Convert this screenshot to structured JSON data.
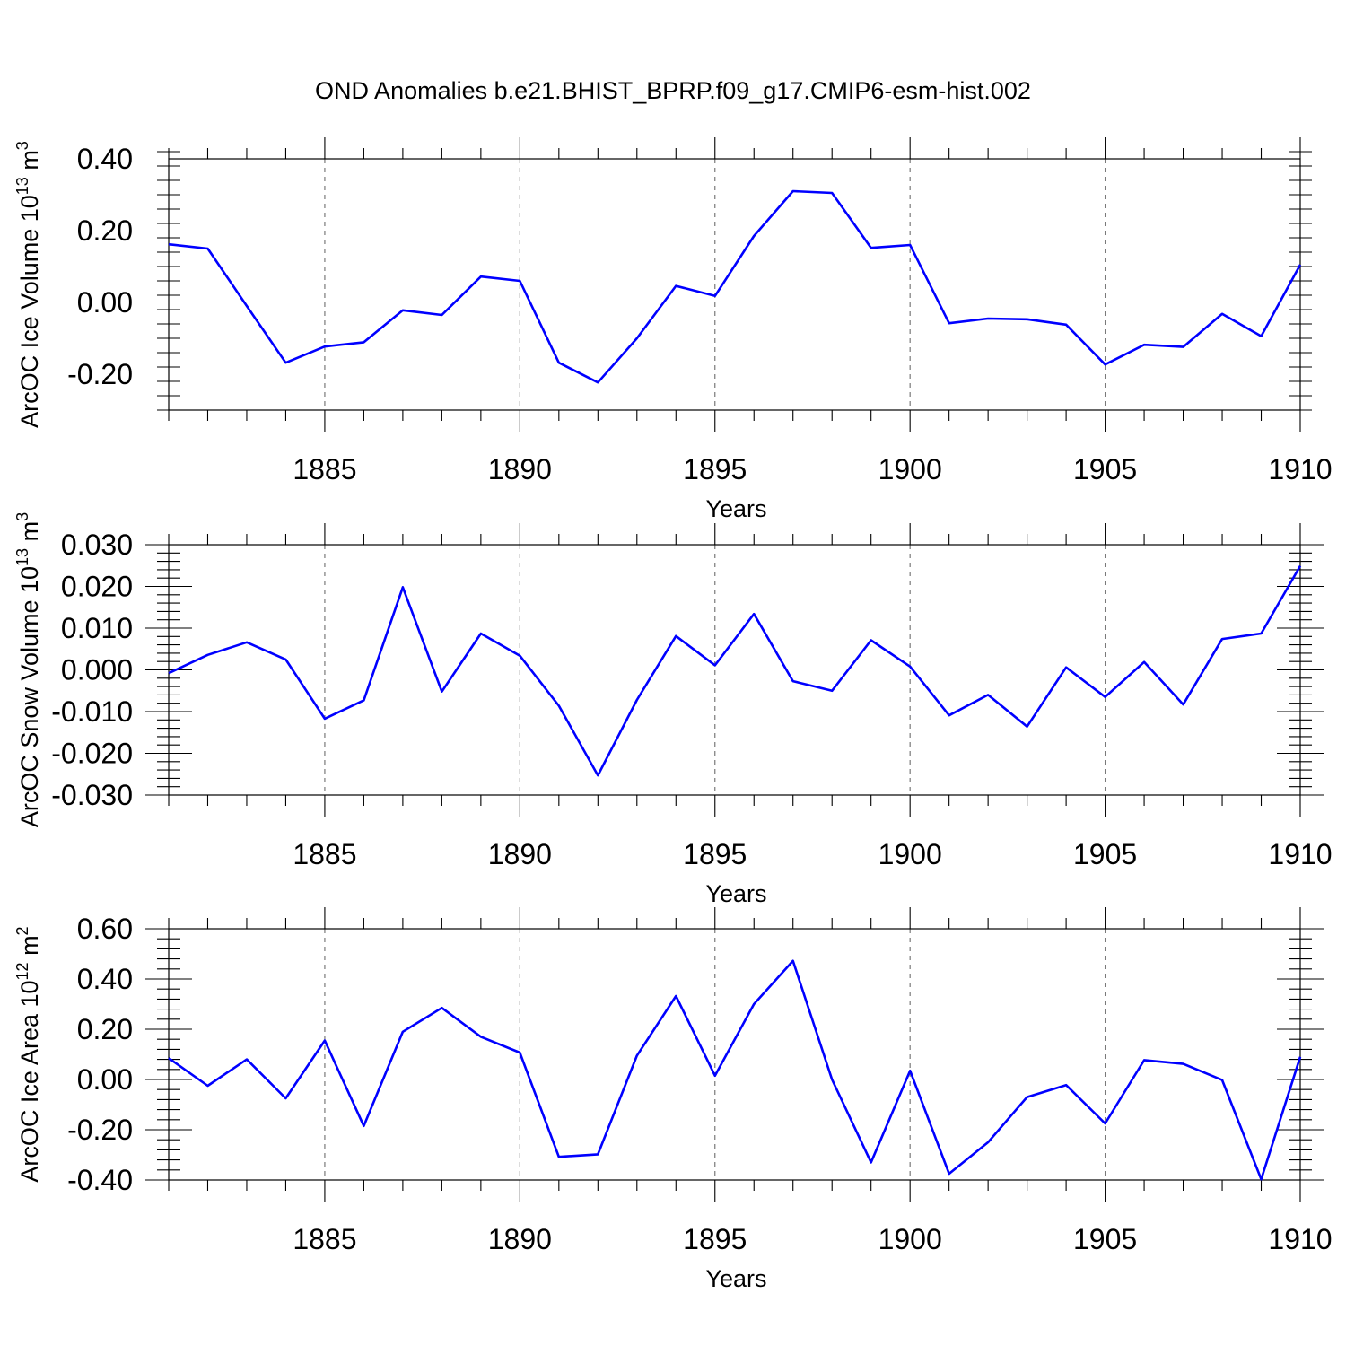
{
  "title": "OND Anomalies b.e21.BHIST_BPRP.f09_g17.CMIP6-esm-hist.002",
  "colors": {
    "line": "#0000ff",
    "axes": "#000000",
    "grid": "#7a7a7a"
  },
  "chart_data": [
    {
      "type": "line",
      "name": "ice-volume",
      "xlabel": "Years",
      "ylabel_main": "ArcOC Ice Volume 10",
      "ylabel_exp": "13",
      "ylabel_unit": " m",
      "ylabel_unit_exp": "3",
      "xlim": [
        1881,
        1910
      ],
      "ylim": [
        -0.3,
        0.4
      ],
      "xticks": [
        1885,
        1890,
        1895,
        1900,
        1905,
        1910
      ],
      "xtick_labels": [
        "1885",
        "1890",
        "1895",
        "1900",
        "1905",
        "1910"
      ],
      "yticks": [
        -0.2,
        0.0,
        0.2,
        0.4
      ],
      "ytick_labels": [
        "-0.20",
        "0.00",
        "0.20",
        "0.40"
      ],
      "grid_x": [
        1885,
        1890,
        1895,
        1900,
        1905
      ],
      "x": [
        1881,
        1882,
        1883,
        1884,
        1885,
        1886,
        1887,
        1888,
        1889,
        1890,
        1891,
        1892,
        1893,
        1894,
        1895,
        1896,
        1897,
        1898,
        1899,
        1900,
        1901,
        1902,
        1903,
        1904,
        1905,
        1906,
        1907,
        1908,
        1909,
        1910
      ],
      "values": [
        0.162,
        0.15,
        -0.01,
        -0.168,
        -0.123,
        -0.111,
        -0.022,
        -0.035,
        0.072,
        0.06,
        -0.168,
        -0.223,
        -0.1,
        0.046,
        0.018,
        0.185,
        0.31,
        0.305,
        0.152,
        0.16,
        -0.058,
        -0.045,
        -0.047,
        -0.062,
        -0.173,
        -0.118,
        -0.124,
        -0.032,
        -0.094,
        0.105
      ]
    },
    {
      "type": "line",
      "name": "snow-volume",
      "xlabel": "Years",
      "ylabel_main": "ArcOC Snow Volume 10",
      "ylabel_exp": "13",
      "ylabel_unit": " m",
      "ylabel_unit_exp": "3",
      "xlim": [
        1881,
        1910
      ],
      "ylim": [
        -0.03,
        0.03
      ],
      "xticks": [
        1885,
        1890,
        1895,
        1900,
        1905,
        1910
      ],
      "xtick_labels": [
        "1885",
        "1890",
        "1895",
        "1900",
        "1905",
        "1910"
      ],
      "yticks": [
        -0.03,
        -0.02,
        -0.01,
        0.0,
        0.01,
        0.02,
        0.03
      ],
      "ytick_labels": [
        "-0.030",
        "-0.020",
        "-0.010",
        "0.000",
        "0.010",
        "0.020",
        "0.030"
      ],
      "grid_x": [
        1885,
        1890,
        1895,
        1900,
        1905
      ],
      "x": [
        1881,
        1882,
        1883,
        1884,
        1885,
        1886,
        1887,
        1888,
        1889,
        1890,
        1891,
        1892,
        1893,
        1894,
        1895,
        1896,
        1897,
        1898,
        1899,
        1900,
        1901,
        1902,
        1903,
        1904,
        1905,
        1906,
        1907,
        1908,
        1909,
        1910
      ],
      "values": [
        -0.0008,
        0.0036,
        0.0066,
        0.0025,
        -0.0117,
        -0.0073,
        0.0198,
        -0.0052,
        0.0087,
        0.0034,
        -0.0086,
        -0.0253,
        -0.0072,
        0.0081,
        0.0011,
        0.0134,
        -0.0027,
        -0.005,
        0.0071,
        0.0008,
        -0.0109,
        -0.006,
        -0.0136,
        0.0006,
        -0.0065,
        0.0019,
        -0.0083,
        0.0074,
        0.0087,
        0.0249
      ]
    },
    {
      "type": "line",
      "name": "ice-area",
      "xlabel": "Years",
      "ylabel_main": "ArcOC Ice Area 10",
      "ylabel_exp": "12",
      "ylabel_unit": " m",
      "ylabel_unit_exp": "2",
      "xlim": [
        1881,
        1910
      ],
      "ylim": [
        -0.4,
        0.6
      ],
      "xticks": [
        1885,
        1890,
        1895,
        1900,
        1905,
        1910
      ],
      "xtick_labels": [
        "1885",
        "1890",
        "1895",
        "1900",
        "1905",
        "1910"
      ],
      "yticks": [
        -0.4,
        -0.2,
        0.0,
        0.2,
        0.4,
        0.6
      ],
      "ytick_labels": [
        "-0.40",
        "-0.20",
        "0.00",
        "0.20",
        "0.40",
        "0.60"
      ],
      "grid_x": [
        1885,
        1890,
        1895,
        1900,
        1905
      ],
      "x": [
        1881,
        1882,
        1883,
        1884,
        1885,
        1886,
        1887,
        1888,
        1889,
        1890,
        1891,
        1892,
        1893,
        1894,
        1895,
        1896,
        1897,
        1898,
        1899,
        1900,
        1901,
        1902,
        1903,
        1904,
        1905,
        1906,
        1907,
        1908,
        1909,
        1910
      ],
      "values": [
        0.085,
        -0.025,
        0.08,
        -0.075,
        0.155,
        -0.185,
        0.19,
        0.285,
        0.17,
        0.107,
        -0.308,
        -0.298,
        0.095,
        0.332,
        0.015,
        0.3,
        0.472,
        0.0,
        -0.33,
        0.035,
        -0.375,
        -0.25,
        -0.07,
        -0.022,
        -0.175,
        0.077,
        0.062,
        -0.002,
        -0.397,
        0.09
      ]
    }
  ]
}
